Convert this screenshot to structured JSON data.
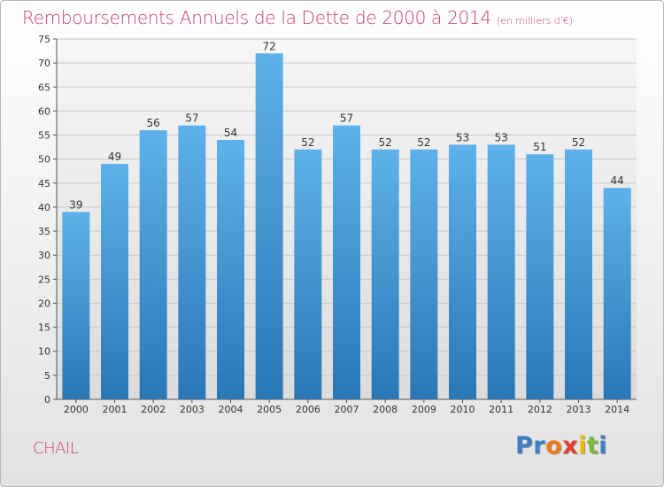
{
  "header": {
    "title": "Remboursements Annuels de la Dette de 2000 à 2014",
    "subtitle": "(en milliers d'€)"
  },
  "footer": {
    "commune": "CHAIL",
    "logo_letters": [
      "P",
      "r",
      "o",
      "x",
      "i",
      "t",
      "i"
    ],
    "logo_colors": [
      "#3a7fc4",
      "#3a7fc4",
      "#f07a1a",
      "#e23b2f",
      "#f5b800",
      "#7cb83a",
      "#3a7fc4"
    ]
  },
  "colors": {
    "bar_top": "#5eb1ea",
    "bar_bottom": "#2a77b6",
    "axis_text": "#333333",
    "grid": "#c8c8c8"
  },
  "chart_data": {
    "type": "bar",
    "title": "Remboursements Annuels de la Dette de 2000 à 2014",
    "subtitle": "(en milliers d'€)",
    "categories": [
      "2000",
      "2001",
      "2002",
      "2003",
      "2004",
      "2005",
      "2006",
      "2007",
      "2008",
      "2009",
      "2010",
      "2011",
      "2012",
      "2013",
      "2014"
    ],
    "values": [
      39,
      49,
      56,
      57,
      54,
      72,
      52,
      57,
      52,
      52,
      53,
      53,
      51,
      52,
      44
    ],
    "ylim": [
      0,
      75
    ],
    "yticks": [
      0,
      5,
      10,
      15,
      20,
      25,
      30,
      35,
      40,
      45,
      50,
      55,
      60,
      65,
      70,
      75
    ],
    "grid": true,
    "xlabel": "",
    "ylabel": ""
  }
}
